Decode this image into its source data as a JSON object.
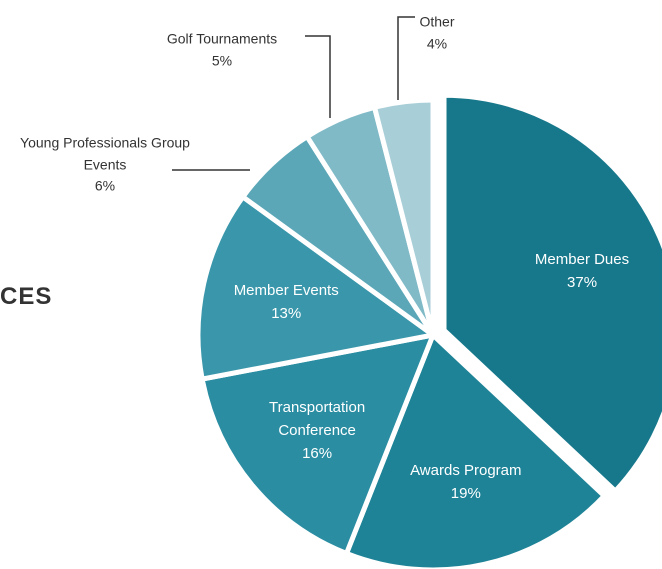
{
  "chart_data": {
    "type": "pie",
    "title": "CES",
    "categories": [
      "Member Dues",
      "Awards Program",
      "Transportation Conference",
      "Member Events",
      "Young Professionals Group Events",
      "Golf Tournaments",
      "Other"
    ],
    "values": [
      37,
      19,
      16,
      13,
      6,
      5,
      4
    ],
    "value_labels": [
      "37%",
      "19%",
      "16%",
      "13%",
      "6%",
      "5%",
      "4%"
    ],
    "colors": [
      "#17788b",
      "#1e8397",
      "#2a8da2",
      "#3a97ab",
      "#5ba7b8",
      "#80bac7",
      "#a8ced8"
    ]
  }
}
